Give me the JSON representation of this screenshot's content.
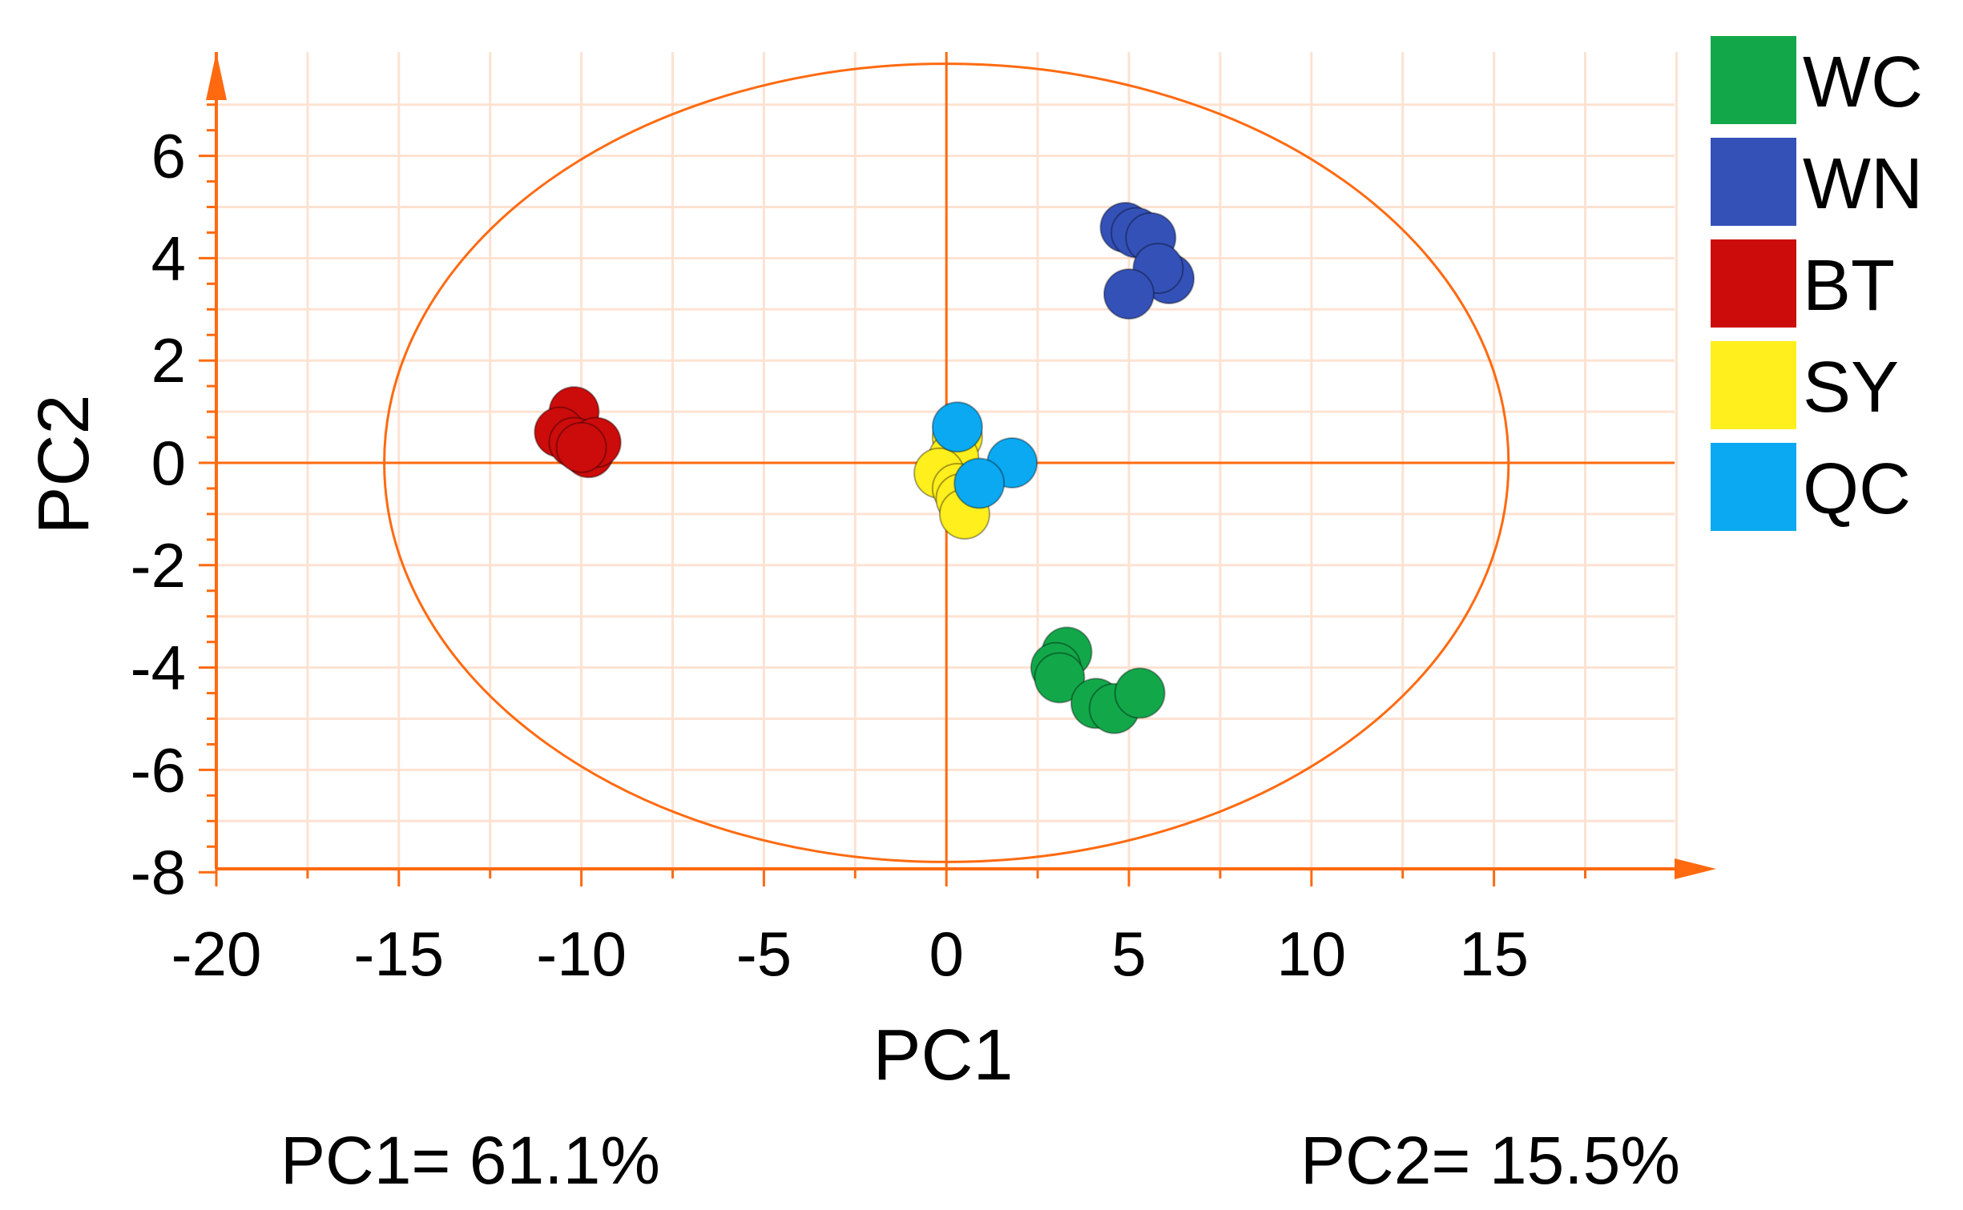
{
  "chart_data": {
    "type": "scatter",
    "xlabel": "PC1",
    "ylabel": "PC2",
    "xlim": [
      -20,
      20
    ],
    "ylim": [
      -8,
      8
    ],
    "xticks": [
      -20,
      -15,
      -10,
      -5,
      0,
      5,
      10,
      15
    ],
    "yticks": [
      6,
      4,
      2,
      0,
      -2,
      -4,
      -6,
      -8
    ],
    "grid": true,
    "ellipse": {
      "cx": 0,
      "cy": 0,
      "rx": 15.4,
      "ry": 7.8
    },
    "legend_position": "right",
    "series": [
      {
        "name": "WC",
        "color": "#12a84a",
        "points": [
          [
            3.3,
            -3.7
          ],
          [
            3.0,
            -4.0
          ],
          [
            3.1,
            -4.2
          ],
          [
            4.1,
            -4.7
          ],
          [
            4.6,
            -4.8
          ],
          [
            5.3,
            -4.5
          ]
        ]
      },
      {
        "name": "WN",
        "color": "#3451b8",
        "points": [
          [
            4.9,
            4.6
          ],
          [
            5.2,
            4.5
          ],
          [
            5.6,
            4.4
          ],
          [
            6.1,
            3.6
          ],
          [
            5.8,
            3.8
          ],
          [
            5.0,
            3.3
          ]
        ]
      },
      {
        "name": "BT",
        "color": "#cc0b0b",
        "points": [
          [
            -10.2,
            1.0
          ],
          [
            -10.6,
            0.6
          ],
          [
            -10.2,
            0.4
          ],
          [
            -9.8,
            0.2
          ],
          [
            -9.6,
            0.4
          ],
          [
            -10.0,
            0.3
          ]
        ]
      },
      {
        "name": "SY",
        "color": "#ffef1d",
        "points": [
          [
            0.3,
            0.5
          ],
          [
            0.2,
            0.1
          ],
          [
            -0.2,
            -0.2
          ],
          [
            0.3,
            -0.5
          ],
          [
            0.4,
            -0.7
          ],
          [
            0.5,
            -1.0
          ]
        ]
      },
      {
        "name": "QC",
        "color": "#0aa9f1",
        "points": [
          [
            0.3,
            0.7
          ],
          [
            1.8,
            0.0
          ],
          [
            0.9,
            -0.4
          ]
        ]
      }
    ]
  },
  "footer": {
    "left": "PC1= 61.1%",
    "right": "PC2= 15.5%"
  }
}
